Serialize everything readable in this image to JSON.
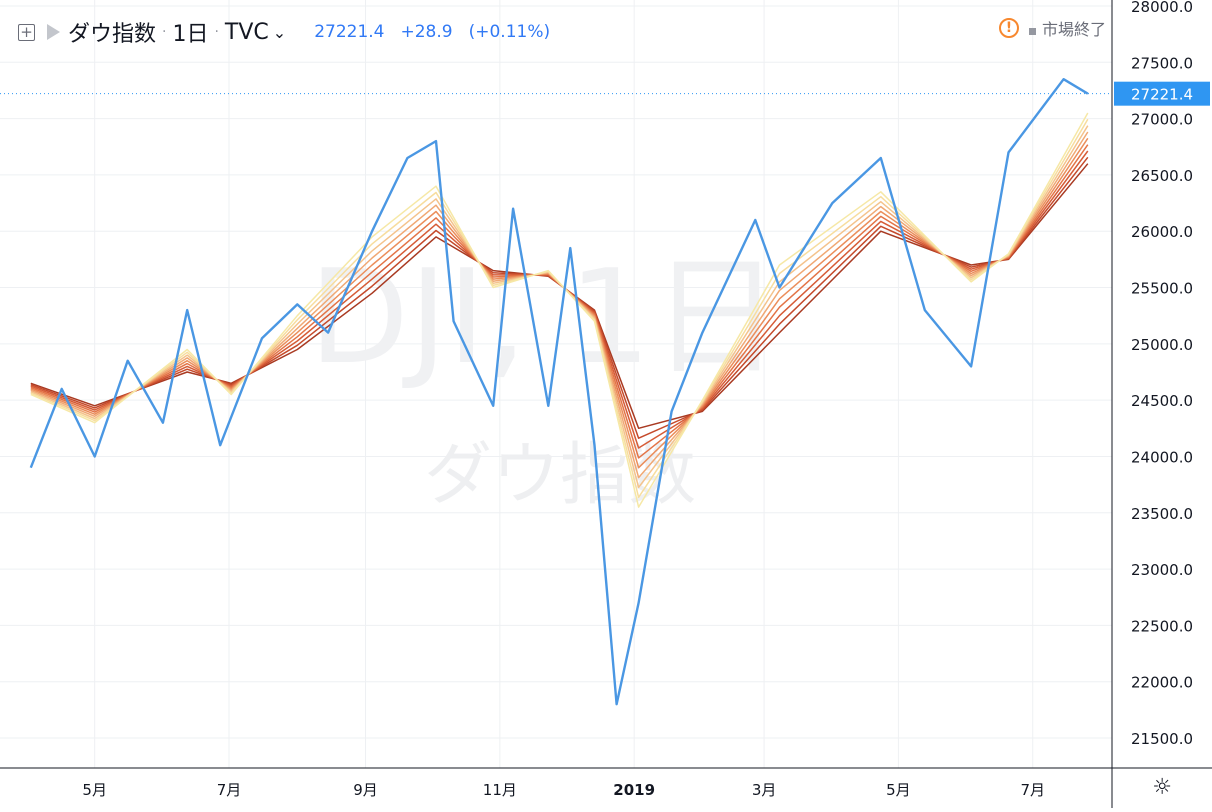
{
  "header": {
    "symbol_name": "ダウ指数",
    "interval": "1日",
    "exchange": "TVC",
    "last": "27221.4",
    "change": "+28.9",
    "change_pct": "(+0.11%)",
    "market_status": "市場終了"
  },
  "watermark": {
    "ticker": "DJI, 1日",
    "name": "ダウ指数"
  },
  "icons": {
    "expand": "plus-box-icon",
    "flag": "flag-icon",
    "menu": "chevron-down-icon",
    "warning": "warning-icon",
    "settings": "gear-icon"
  },
  "colors": {
    "price_line": "#4a97e3",
    "ribbon": [
      "#a93a22",
      "#c54a2b",
      "#d65c37",
      "#e37447",
      "#eb8e5b",
      "#f0a874",
      "#f4c38c",
      "#f7dd9e",
      "#f6e8a6"
    ],
    "price_tag_bg": "#2f96f2"
  },
  "chart_data": {
    "type": "line",
    "title": "ダウ指数",
    "x_ticks": [
      "5月",
      "7月",
      "9月",
      "11月",
      "2019",
      "3月",
      "5月",
      "7月"
    ],
    "y_ticks": [
      "28000.0",
      "27500.0",
      "27000.0",
      "26500.0",
      "26000.0",
      "25500.0",
      "25000.0",
      "24500.0",
      "24000.0",
      "23500.0",
      "23000.0",
      "22500.0",
      "22000.0",
      "21500.0"
    ],
    "ylim": [
      21000,
      28050
    ],
    "last_price_label": "27221.4",
    "grid": true,
    "series": [
      {
        "name": "ダウ指数",
        "role": "price",
        "x": [
          "2018-04-02",
          "2018-04-16",
          "2018-05-01",
          "2018-05-16",
          "2018-06-01",
          "2018-06-12",
          "2018-06-27",
          "2018-07-02",
          "2018-07-16",
          "2018-08-01",
          "2018-08-15",
          "2018-09-04",
          "2018-09-20",
          "2018-10-03",
          "2018-10-11",
          "2018-10-29",
          "2018-11-07",
          "2018-11-23",
          "2018-12-03",
          "2018-12-14",
          "2018-12-24",
          "2019-01-03",
          "2019-01-18",
          "2019-02-01",
          "2019-02-25",
          "2019-03-08",
          "2019-04-01",
          "2019-04-23",
          "2019-05-13",
          "2019-06-03",
          "2019-06-20",
          "2019-07-15",
          "2019-07-26"
        ],
        "y": [
          23900,
          24600,
          24000,
          24850,
          24300,
          25300,
          24100,
          24350,
          25050,
          25350,
          25100,
          26000,
          26650,
          26800,
          25200,
          24450,
          26200,
          24450,
          25850,
          24100,
          21800,
          22700,
          24400,
          25100,
          26100,
          25500,
          26250,
          26650,
          25300,
          24800,
          26700,
          27350,
          27221.4
        ]
      },
      {
        "name": "",
        "role": "ribbon-fastest",
        "x": [
          "2018-04-02",
          "2018-05-01",
          "2018-06-12",
          "2018-07-02",
          "2018-08-01",
          "2018-09-04",
          "2018-10-03",
          "2018-10-29",
          "2018-11-23",
          "2018-12-14",
          "2019-01-03",
          "2019-02-01",
          "2019-03-08",
          "2019-04-23",
          "2019-06-03",
          "2019-06-20",
          "2019-07-26"
        ],
        "y": [
          24550,
          24300,
          24950,
          24550,
          25250,
          25950,
          26400,
          25500,
          25650,
          25200,
          23550,
          24500,
          25700,
          26350,
          25550,
          25800,
          27050
        ]
      },
      {
        "name": "",
        "role": "ribbon-slowest",
        "x": [
          "2018-04-02",
          "2018-05-01",
          "2018-06-12",
          "2018-07-02",
          "2018-08-01",
          "2018-09-04",
          "2018-10-03",
          "2018-10-29",
          "2018-11-23",
          "2018-12-14",
          "2019-01-03",
          "2019-02-01",
          "2019-03-08",
          "2019-04-23",
          "2019-06-03",
          "2019-06-20",
          "2019-07-26"
        ],
        "y": [
          24650,
          24450,
          24750,
          24650,
          24950,
          25450,
          25950,
          25650,
          25600,
          25300,
          24250,
          24400,
          25100,
          26000,
          25700,
          25750,
          26600
        ]
      }
    ]
  }
}
